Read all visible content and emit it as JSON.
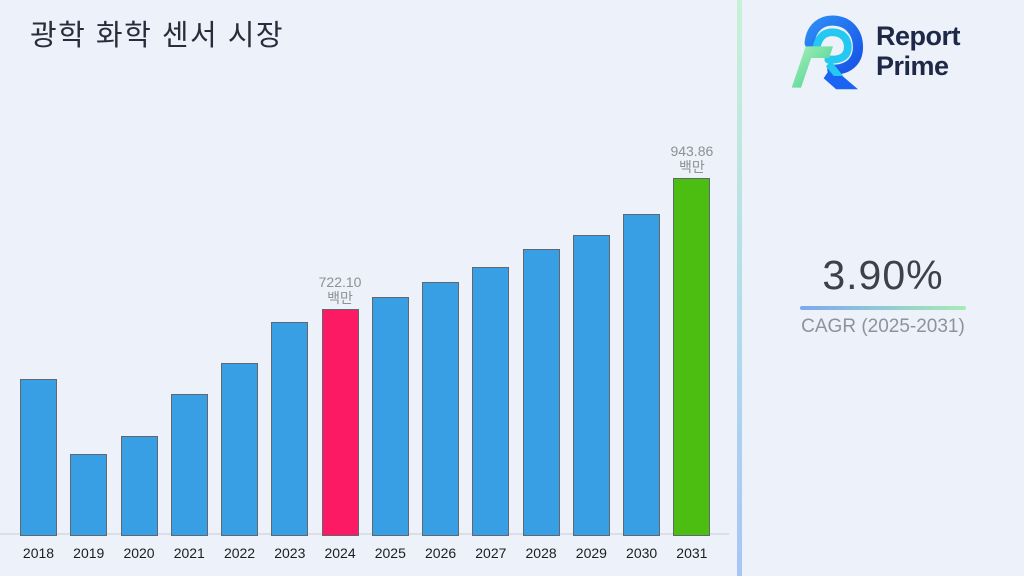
{
  "page": {
    "title": "광학 화학 센서 시장"
  },
  "brand": {
    "name_line1": "Report",
    "name_line2": "Prime",
    "logo_icon": "report-prime-r-monogram"
  },
  "cagr": {
    "value": "3.90%",
    "label": "CAGR (2025-2031)"
  },
  "chart_data": {
    "type": "bar",
    "title": "광학 화학 센서 시장",
    "categories": [
      "2018",
      "2019",
      "2020",
      "2021",
      "2022",
      "2023",
      "2024",
      "2025",
      "2026",
      "2027",
      "2028",
      "2029",
      "2030",
      "2031"
    ],
    "values": [
      604,
      477,
      507,
      578,
      631,
      700,
      722.1,
      742,
      768,
      793,
      824,
      847,
      883,
      943.86
    ],
    "unit": "백만",
    "xlabel": "",
    "ylabel": "",
    "ylim": [
      338,
      960
    ],
    "grid": false,
    "legend": false,
    "bar_colors": {
      "default": "#399fe5",
      "2024": "#fb1a63",
      "2031": "#4cbe11"
    },
    "annotations": [
      {
        "category": "2024",
        "value_label": "722.10",
        "unit_label": "백만"
      },
      {
        "category": "2031",
        "value_label": "943.86",
        "unit_label": "백만"
      }
    ]
  },
  "colors": {
    "background": "#ecf1fa",
    "bar_default": "#399fe5",
    "bar_highlight_pink": "#fb1a63",
    "bar_highlight_green": "#4cbe11",
    "bar_border": "#62676e",
    "axis_line": "#d9dee8",
    "divider_top": "#c8f1d7",
    "divider_bottom": "#a7c5f6",
    "underline_left": "#7da7f0",
    "underline_right": "#a8ebb5",
    "title_text": "#272d3b",
    "brand_text": "#1d2947",
    "value_label_text": "#8e9094"
  }
}
